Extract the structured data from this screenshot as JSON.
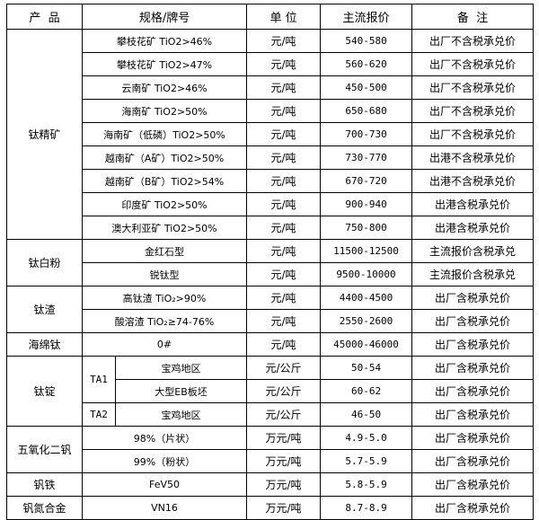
{
  "header": {
    "product": "产  品",
    "spec": "规格/牌号",
    "unit": "单 位",
    "price": "主流报价",
    "note": "备  注"
  },
  "groups": {
    "titanium_concentrate": {
      "name": "钛精矿",
      "rows": [
        {
          "spec": "攀枝花矿 TiO2>46%",
          "unit": "元/吨",
          "price": "540-580",
          "note": "出厂不含税承兑价"
        },
        {
          "spec": "攀枝花矿 TiO2>47%",
          "unit": "元/吨",
          "price": "560-620",
          "note": "出厂不含税承兑价"
        },
        {
          "spec": "云南矿 TiO2>46%",
          "unit": "元/吨",
          "price": "450-500",
          "note": "出厂不含税承兑价"
        },
        {
          "spec": "海南矿 TiO2>50%",
          "unit": "元/吨",
          "price": "650-680",
          "note": "出厂不含税承兑价"
        },
        {
          "spec": "海南矿（低磷）TiO2>50%",
          "unit": "元/吨",
          "price": "700-730",
          "note": "出厂不含税承兑价"
        },
        {
          "spec": "越南矿（A矿）TiO2>50%",
          "unit": "元/吨",
          "price": "730-770",
          "note": "出港不含税承兑价"
        },
        {
          "spec": "越南矿（B矿）TiO2>54%",
          "unit": "元/吨",
          "price": "670-720",
          "note": "出港不含税承兑价"
        },
        {
          "spec": "印度矿 TiO2>50%",
          "unit": "元/吨",
          "price": "900-940",
          "note": "出港含税承兑价"
        },
        {
          "spec": "澳大利亚矿 TiO2>50%",
          "unit": "元/吨",
          "price": "750-800",
          "note": "出港含税承兑价"
        }
      ]
    },
    "titanium_dioxide": {
      "name": "钛白粉",
      "rows": [
        {
          "spec": "金红石型",
          "unit": "元/吨",
          "price": "11500-12500",
          "note": "主流报价含税承兑"
        },
        {
          "spec": "锐钛型",
          "unit": "元/吨",
          "price": "9500-10000",
          "note": "主流报价含税承兑"
        }
      ]
    },
    "titanium_slag": {
      "name": "钛渣",
      "rows": [
        {
          "spec": "高钛渣 TiO₂>90%",
          "unit": "元/吨",
          "price": "4400-4500",
          "note": "出厂含税承兑价"
        },
        {
          "spec": "酸溶渣 TiO₂≥74-76%",
          "unit": "元/吨",
          "price": "2550-2600",
          "note": "出厂含税承兑价"
        }
      ]
    },
    "sponge_titanium": {
      "name": "海绵钛",
      "rows": [
        {
          "spec": "0#",
          "unit": "元/吨",
          "price": "45000-46000",
          "note": "出厂含税承兑价"
        }
      ]
    },
    "titanium_ingot": {
      "name": "钛锭",
      "ta1": "TA1",
      "ta2": "TA2",
      "rows": [
        {
          "spec": "宝鸡地区",
          "unit": "元/公斤",
          "price": "50-54",
          "note": "出厂含税承兑价"
        },
        {
          "spec": "大型EB板坯",
          "unit": "元/公斤",
          "price": "60-62",
          "note": "出厂含税承兑价"
        },
        {
          "spec": "宝鸡地区",
          "unit": "元/公斤",
          "price": "46-50",
          "note": "出厂含税承兑价"
        }
      ]
    },
    "vanadium_pentoxide": {
      "name": "五氧化二钒",
      "rows": [
        {
          "spec": "98%（片状）",
          "unit": "万元/吨",
          "price": "4.9-5.0",
          "note": "出厂含税承兑价"
        },
        {
          "spec": "99%（粉状）",
          "unit": "万元/吨",
          "price": "5.7-5.9",
          "note": "出厂含税承兑价"
        }
      ]
    },
    "ferrovanadium": {
      "name": "钒铁",
      "rows": [
        {
          "spec": "FeV50",
          "unit": "万元/吨",
          "price": "5.8-5.9",
          "note": "出厂含税承兑价"
        }
      ]
    },
    "vanadium_nitrogen": {
      "name": "钒氮合金",
      "rows": [
        {
          "spec": "VN16",
          "unit": "万元/吨",
          "price": "8.7-8.9",
          "note": "出厂含税承兑价"
        }
      ]
    }
  }
}
